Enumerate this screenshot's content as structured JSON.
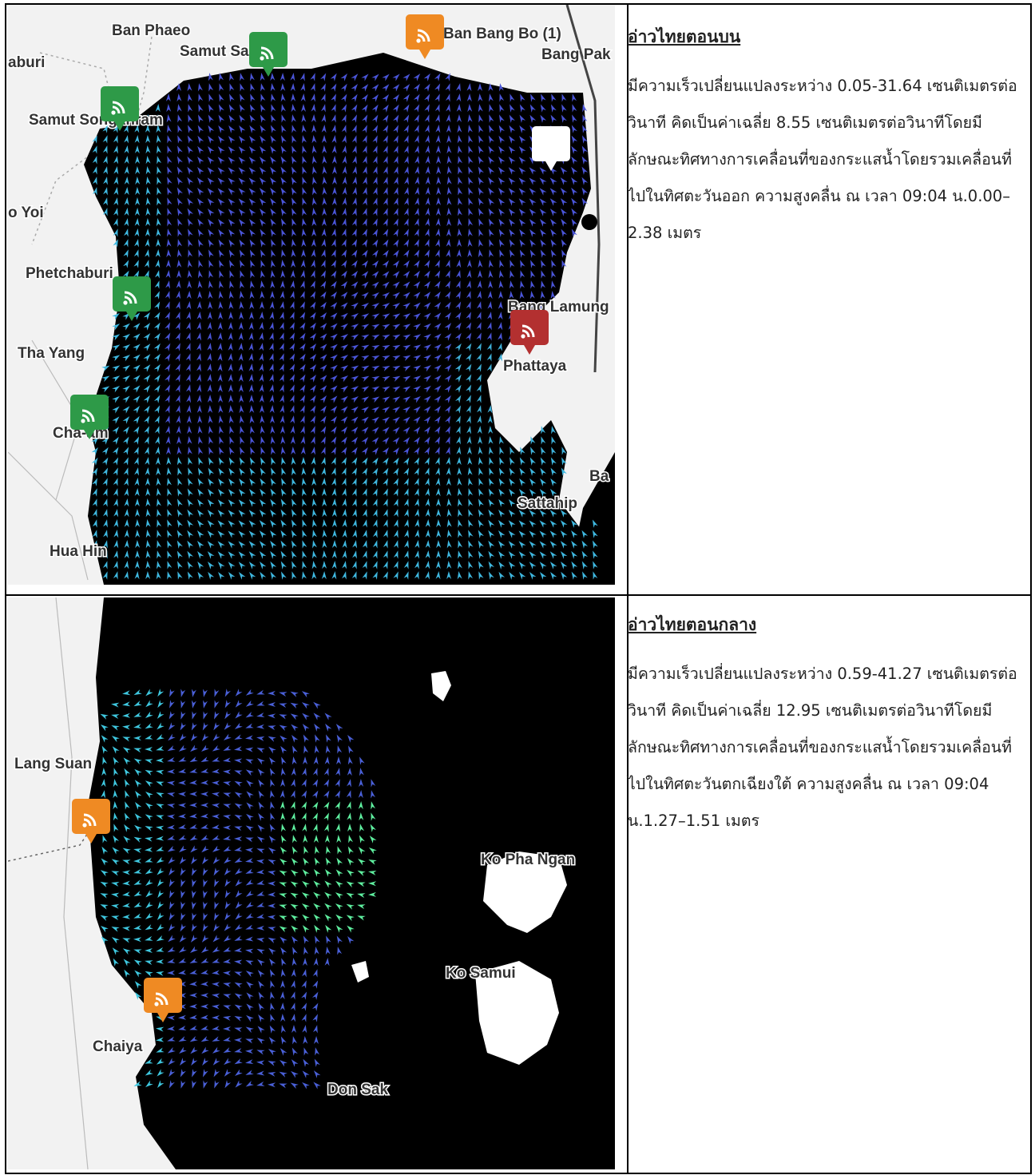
{
  "sections": [
    {
      "heading": "อ่าวไทยตอนบน",
      "description": "มีความเร็วเปลี่ยนแปลงระหว่าง 0.05-31.64 เซนติเมตรต่อวินาที คิดเป็นค่าเฉลี่ย 8.55 เซนติเมตรต่อวินาทีโดยมีลักษณะทิศทางการเคลื่อนที่ของกระแสน้ำโดยรวมเคลื่อนที่ไปในทิศตะวันออก ความสูงคลื่น ณ เวลา 09:04 น.0.00–2.38 เมตร",
      "map": {
        "places": [
          "Ban Phaeo",
          "Samut Sakhon",
          "Ban Bang Bo (1)",
          "Bang Pak",
          "aburi",
          "Samut Songkhram",
          "o Yoi",
          "Phetchaburi",
          "Tha Yang",
          "Cha-am",
          "Hua Hin",
          "Bang Lamung",
          "Phattaya",
          "Sattahip",
          "Ba"
        ],
        "marker_colors": {
          "green": "#2e9a48",
          "orange": "#ef8a23",
          "red": "#b33030"
        }
      }
    },
    {
      "heading": "อ่าวไทยตอนกลาง",
      "description": "มีความเร็วเปลี่ยนแปลงระหว่าง 0.59-41.27 เซนติเมตรต่อวินาที คิดเป็นค่าเฉลี่ย 12.95 เซนติเมตรต่อวินาทีโดยมีลักษณะทิศทางการเคลื่อนที่ของกระแสน้ำโดยรวมเคลื่อนที่ไปในทิศตะวันตกเฉียงใต้ ความสูงคลื่น ณ เวลา 09:04 น.1.27–1.51 เมตร",
      "map": {
        "places": [
          "Lang Suan",
          "Ko Pha Ngan",
          "Ko Samui",
          "Chaiya",
          "Don Sak"
        ],
        "marker_colors": {
          "orange": "#ef8a23"
        }
      }
    }
  ]
}
